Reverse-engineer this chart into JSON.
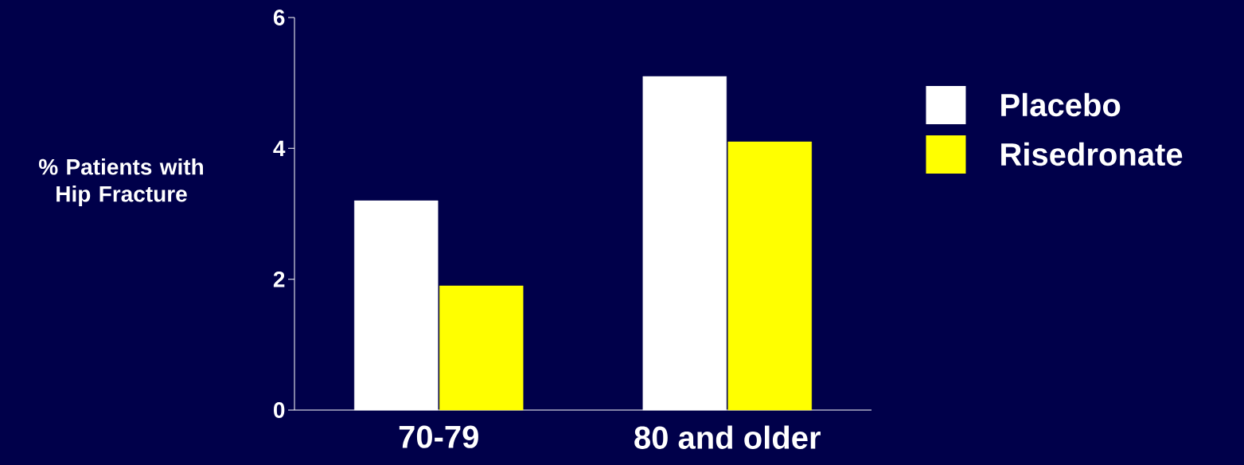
{
  "chart_data": {
    "type": "bar",
    "ylabel": "% Patients with Hip Fracture",
    "categories": [
      "70-79",
      "80 and older"
    ],
    "series": [
      {
        "name": "Placebo",
        "color": "#ffffff",
        "values": [
          3.2,
          5.1
        ]
      },
      {
        "name": "Risedronate",
        "color": "#ffff00",
        "values": [
          1.9,
          4.1
        ]
      }
    ],
    "ylim": [
      0,
      6
    ],
    "yticks": [
      0,
      2,
      4,
      6
    ],
    "legend": "right"
  }
}
